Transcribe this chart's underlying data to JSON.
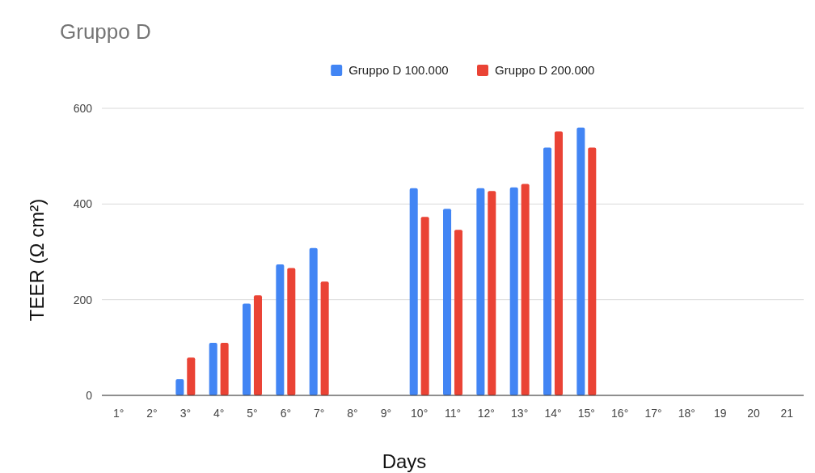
{
  "chart_data": {
    "type": "bar",
    "title": "Gruppo D",
    "xlabel": "Days",
    "ylabel": "TEER (Ω cm²)",
    "categories": [
      "1°",
      "2°",
      "3°",
      "4°",
      "5°",
      "6°",
      "7°",
      "8°",
      "9°",
      "10°",
      "11°",
      "12°",
      "13°",
      "14°",
      "15°",
      "16°",
      "17°",
      "18°",
      "19",
      "20",
      "21"
    ],
    "series": [
      {
        "name": "Gruppo D 100.000",
        "color": "#4285f4",
        "values": [
          null,
          null,
          34,
          110,
          192,
          274,
          308,
          null,
          null,
          433,
          390,
          433,
          435,
          518,
          560,
          null,
          null,
          null,
          null,
          null,
          null
        ]
      },
      {
        "name": "Gruppo D 200.000",
        "color": "#ea4335",
        "values": [
          null,
          null,
          79,
          110,
          209,
          266,
          238,
          null,
          null,
          373,
          346,
          427,
          442,
          552,
          518,
          null,
          null,
          null,
          null,
          null,
          null
        ]
      }
    ],
    "ylim": [
      0,
      600
    ],
    "yticks": [
      0,
      200,
      400,
      600
    ],
    "grid": "y",
    "legend": "top"
  }
}
